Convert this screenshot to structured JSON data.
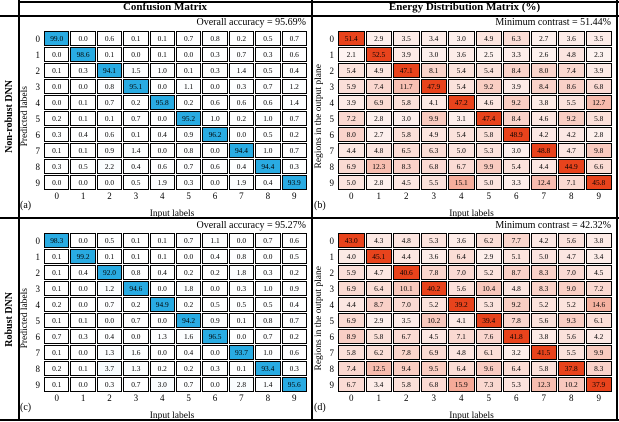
{
  "figure": {
    "left_title": "Confusion Matrix",
    "right_title": "Energy Distribution Matrix (%)",
    "row_group_labels": [
      "Non-robust DNN",
      "Robust DNN"
    ]
  },
  "colors": {
    "confusion_diagonal": "#29abe2",
    "energy_diagonal": "#e8431c",
    "cell_border": "#000000",
    "background": "#ffffff"
  },
  "chart_data": [
    {
      "type": "heatmap",
      "matrix_kind": "confusion",
      "panel_letter": "(a)",
      "group": "Non-robust DNN",
      "annotation": "Overall accuracy = 95.69%",
      "xlabel": "Input labels",
      "ylabel": "Predicted labels",
      "x_ticks": [
        "0",
        "1",
        "2",
        "3",
        "4",
        "5",
        "6",
        "7",
        "8",
        "9"
      ],
      "y_ticks": [
        "0",
        "1",
        "2",
        "3",
        "4",
        "5",
        "6",
        "7",
        "8",
        "9"
      ],
      "values": [
        [
          99.0,
          0.0,
          0.6,
          0.1,
          0.1,
          0.7,
          0.8,
          0.2,
          0.5,
          0.7
        ],
        [
          0.0,
          98.6,
          0.1,
          0.0,
          0.1,
          0.0,
          0.3,
          0.7,
          0.3,
          0.6
        ],
        [
          0.1,
          0.3,
          94.1,
          1.5,
          1.0,
          0.1,
          0.3,
          1.4,
          0.5,
          0.4
        ],
        [
          0.0,
          0.0,
          0.8,
          95.1,
          0.0,
          1.1,
          0.0,
          0.3,
          0.7,
          1.2
        ],
        [
          0.0,
          0.1,
          0.7,
          0.2,
          95.8,
          0.2,
          0.6,
          0.6,
          0.6,
          1.4
        ],
        [
          0.2,
          0.1,
          0.1,
          0.7,
          0.0,
          95.2,
          1.0,
          0.2,
          1.0,
          0.7
        ],
        [
          0.3,
          0.4,
          0.6,
          0.1,
          0.4,
          0.9,
          96.2,
          0.0,
          0.5,
          0.2
        ],
        [
          0.1,
          0.1,
          0.9,
          1.4,
          0.0,
          0.8,
          0.0,
          94.4,
          1.0,
          0.7
        ],
        [
          0.3,
          0.5,
          2.2,
          0.4,
          0.6,
          0.7,
          0.6,
          0.4,
          94.4,
          0.3
        ],
        [
          0.0,
          0.0,
          0.0,
          0.5,
          1.9,
          0.3,
          0.0,
          1.9,
          0.4,
          93.9
        ]
      ]
    },
    {
      "type": "heatmap",
      "matrix_kind": "energy",
      "panel_letter": "(b)",
      "group": "Non-robust DNN",
      "annotation": "Minimum contrast = 51.44%",
      "xlabel": "Input labels",
      "ylabel": "Regions in the output plane",
      "x_ticks": [
        "0",
        "1",
        "2",
        "3",
        "4",
        "5",
        "6",
        "7",
        "8",
        "9"
      ],
      "y_ticks": [
        "0",
        "1",
        "2",
        "3",
        "4",
        "5",
        "6",
        "7",
        "8",
        "9"
      ],
      "values": [
        [
          51.4,
          2.9,
          3.5,
          3.4,
          3.0,
          4.9,
          6.3,
          2.7,
          3.6,
          3.5
        ],
        [
          2.1,
          52.5,
          3.9,
          3.0,
          3.6,
          2.5,
          3.3,
          2.6,
          4.8,
          2.3
        ],
        [
          5.4,
          4.9,
          47.1,
          8.1,
          5.4,
          5.4,
          8.4,
          8.0,
          7.4,
          3.9
        ],
        [
          5.9,
          7.4,
          11.7,
          47.9,
          5.4,
          9.2,
          3.9,
          8.4,
          8.6,
          6.8
        ],
        [
          3.9,
          6.9,
          5.8,
          4.1,
          47.2,
          4.6,
          9.2,
          3.8,
          5.5,
          12.7
        ],
        [
          7.2,
          2.8,
          3.0,
          9.9,
          3.1,
          47.4,
          8.4,
          4.6,
          9.2,
          5.8
        ],
        [
          8.0,
          2.7,
          5.8,
          4.9,
          5.4,
          5.8,
          48.9,
          4.2,
          4.2,
          2.8
        ],
        [
          4.4,
          4.8,
          6.5,
          6.3,
          5.0,
          5.3,
          3.0,
          48.8,
          4.7,
          9.8
        ],
        [
          6.9,
          12.3,
          8.3,
          6.8,
          6.7,
          9.9,
          5.4,
          4.4,
          44.9,
          6.6
        ],
        [
          5.0,
          2.8,
          4.5,
          5.5,
          15.1,
          5.0,
          3.3,
          12.4,
          7.1,
          45.8
        ]
      ]
    },
    {
      "type": "heatmap",
      "matrix_kind": "confusion",
      "panel_letter": "(c)",
      "group": "Robust DNN",
      "annotation": "Overall accuracy = 95.27%",
      "xlabel": "Input labels",
      "ylabel": "Predicted labels",
      "x_ticks": [
        "0",
        "1",
        "2",
        "3",
        "4",
        "5",
        "6",
        "7",
        "8",
        "9"
      ],
      "y_ticks": [
        "0",
        "1",
        "2",
        "3",
        "4",
        "5",
        "6",
        "7",
        "8",
        "9"
      ],
      "values": [
        [
          98.3,
          0.0,
          0.5,
          0.1,
          0.1,
          0.7,
          1.1,
          0.0,
          0.7,
          0.6
        ],
        [
          0.1,
          99.2,
          0.1,
          0.1,
          0.1,
          0.0,
          0.4,
          0.8,
          0.0,
          0.5
        ],
        [
          0.1,
          0.4,
          92.0,
          0.8,
          0.4,
          0.2,
          0.2,
          1.8,
          0.3,
          0.2
        ],
        [
          0.1,
          0.0,
          1.2,
          94.6,
          0.0,
          1.8,
          0.0,
          0.3,
          1.0,
          0.9
        ],
        [
          0.2,
          0.0,
          0.7,
          0.2,
          94.9,
          0.2,
          0.5,
          0.5,
          0.5,
          0.4
        ],
        [
          0.1,
          0.1,
          0.0,
          0.7,
          0.0,
          94.2,
          0.9,
          0.1,
          0.8,
          0.7
        ],
        [
          0.7,
          0.3,
          0.4,
          0.0,
          1.3,
          1.6,
          96.5,
          0.0,
          0.7,
          0.2
        ],
        [
          0.1,
          0.0,
          1.3,
          1.6,
          0.0,
          0.4,
          0.0,
          93.7,
          1.0,
          0.6
        ],
        [
          0.2,
          0.1,
          3.7,
          1.3,
          0.2,
          0.2,
          0.3,
          0.1,
          93.4,
          0.3
        ],
        [
          0.1,
          0.0,
          0.3,
          0.7,
          3.0,
          0.7,
          0.0,
          2.8,
          1.4,
          95.6
        ]
      ]
    },
    {
      "type": "heatmap",
      "matrix_kind": "energy",
      "panel_letter": "(d)",
      "group": "Robust DNN",
      "annotation": "Minimum contrast = 42.32%",
      "xlabel": "Input labels",
      "ylabel": "Regions in the output plane",
      "x_ticks": [
        "0",
        "1",
        "2",
        "3",
        "4",
        "5",
        "6",
        "7",
        "8",
        "9"
      ],
      "y_ticks": [
        "0",
        "1",
        "2",
        "3",
        "4",
        "5",
        "6",
        "7",
        "8",
        "9"
      ],
      "values": [
        [
          43.0,
          4.3,
          4.8,
          5.3,
          3.6,
          6.2,
          7.7,
          4.2,
          5.6,
          3.8
        ],
        [
          4.0,
          45.1,
          4.4,
          3.6,
          6.4,
          2.9,
          5.1,
          5.0,
          4.7,
          3.4
        ],
        [
          5.9,
          4.7,
          40.6,
          7.8,
          7.0,
          5.2,
          8.7,
          8.3,
          7.0,
          4.5
        ],
        [
          6.9,
          6.4,
          10.1,
          40.2,
          5.6,
          10.4,
          4.8,
          8.3,
          9.0,
          7.2
        ],
        [
          4.4,
          8.7,
          7.0,
          5.2,
          39.2,
          5.3,
          9.2,
          5.2,
          5.2,
          14.6
        ],
        [
          6.9,
          2.9,
          3.5,
          10.2,
          4.1,
          39.4,
          7.8,
          5.6,
          9.3,
          6.1
        ],
        [
          8.9,
          5.8,
          6.7,
          4.5,
          7.1,
          7.6,
          41.8,
          3.8,
          5.6,
          4.2
        ],
        [
          5.8,
          6.2,
          7.8,
          6.9,
          4.8,
          6.1,
          3.2,
          41.5,
          5.5,
          9.9
        ],
        [
          7.4,
          12.5,
          9.4,
          9.5,
          6.4,
          9.6,
          6.4,
          5.8,
          37.8,
          8.3
        ],
        [
          6.7,
          3.4,
          5.8,
          6.8,
          15.9,
          7.3,
          5.3,
          12.3,
          10.2,
          37.9
        ]
      ]
    }
  ]
}
